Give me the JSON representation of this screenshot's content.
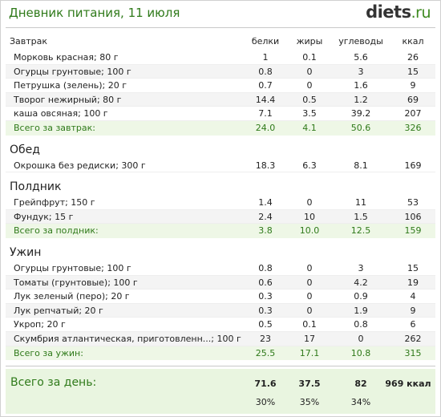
{
  "header": {
    "title": "Дневник питания, 11 июля",
    "logo_main": "diets",
    "logo_suffix": ".ru"
  },
  "columns": {
    "protein": "белки",
    "fat": "жиры",
    "carbs": "углеводы",
    "kcal": "ккал"
  },
  "meals": [
    {
      "name": "Завтрак",
      "items": [
        {
          "name": "Морковь красная; 80 г",
          "p": "1",
          "f": "0.1",
          "c": "5.6",
          "k": "26"
        },
        {
          "name": "Огурцы грунтовые; 100 г",
          "p": "0.8",
          "f": "0",
          "c": "3",
          "k": "15"
        },
        {
          "name": "Петрушка (зелень); 20 г",
          "p": "0.7",
          "f": "0",
          "c": "1.6",
          "k": "9"
        },
        {
          "name": "Творог нежирный; 80 г",
          "p": "14.4",
          "f": "0.5",
          "c": "1.2",
          "k": "69"
        },
        {
          "name": "каша овсяная; 100 г",
          "p": "7.1",
          "f": "3.5",
          "c": "39.2",
          "k": "207"
        }
      ],
      "total": {
        "label": "Всего за завтрак:",
        "p": "24.0",
        "f": "4.1",
        "c": "50.6",
        "k": "326"
      }
    },
    {
      "name": "Обед",
      "items": [
        {
          "name": "Окрошка без редиски; 300 г",
          "p": "18.3",
          "f": "6.3",
          "c": "8.1",
          "k": "169"
        }
      ],
      "total": null
    },
    {
      "name": "Полдник",
      "items": [
        {
          "name": "Грейпфрут; 150 г",
          "p": "1.4",
          "f": "0",
          "c": "11",
          "k": "53"
        },
        {
          "name": "Фундук; 15 г",
          "p": "2.4",
          "f": "10",
          "c": "1.5",
          "k": "106"
        }
      ],
      "total": {
        "label": "Всего за полдник:",
        "p": "3.8",
        "f": "10.0",
        "c": "12.5",
        "k": "159"
      }
    },
    {
      "name": "Ужин",
      "items": [
        {
          "name": "Огурцы грунтовые; 100 г",
          "p": "0.8",
          "f": "0",
          "c": "3",
          "k": "15"
        },
        {
          "name": "Томаты (грунтовые); 100 г",
          "p": "0.6",
          "f": "0",
          "c": "4.2",
          "k": "19"
        },
        {
          "name": "Лук зеленый (перо); 20 г",
          "p": "0.3",
          "f": "0",
          "c": "0.9",
          "k": "4"
        },
        {
          "name": "Лук репчатый; 20 г",
          "p": "0.3",
          "f": "0",
          "c": "1.9",
          "k": "9"
        },
        {
          "name": "Укроп; 20 г",
          "p": "0.5",
          "f": "0.1",
          "c": "0.8",
          "k": "6"
        },
        {
          "name": "Скумбрия атлантическая, приготовленн...; 100 г",
          "p": "23",
          "f": "17",
          "c": "0",
          "k": "262"
        }
      ],
      "total": {
        "label": "Всего за ужин:",
        "p": "25.5",
        "f": "17.1",
        "c": "10.8",
        "k": "315"
      }
    }
  ],
  "day_total": {
    "label": "Всего за день:",
    "p": "71.6",
    "f": "37.5",
    "c": "82",
    "k": "969 ккал",
    "p_pct": "30%",
    "f_pct": "35%",
    "c_pct": "34%"
  }
}
